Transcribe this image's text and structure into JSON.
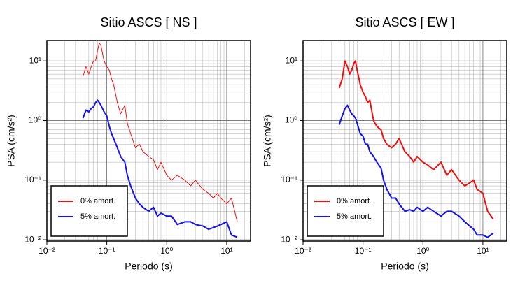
{
  "chart_data": [
    {
      "type": "line",
      "title": "Sitio ASCS [ NS ]",
      "x_label": "Periodo (s)",
      "y_label": "PSA (cm/s²)",
      "log_x": true,
      "log_y": true,
      "grid": true,
      "minor_grid": true,
      "legend": "lower left",
      "x": [
        0.04,
        0.045,
        0.05,
        0.055,
        0.06,
        0.065,
        0.07,
        0.075,
        0.08,
        0.09,
        0.1,
        0.11,
        0.12,
        0.13,
        0.15,
        0.17,
        0.2,
        0.22,
        0.25,
        0.3,
        0.35,
        0.4,
        0.5,
        0.6,
        0.7,
        0.8,
        1,
        1.2,
        1.5,
        2,
        2.5,
        3,
        4,
        5,
        6,
        7,
        8,
        10,
        12,
        15
      ],
      "series": [
        {
          "name": "0% amort.",
          "color": "#ee1111",
          "width": 1,
          "values": [
            5.5,
            8,
            6,
            8,
            10,
            10,
            15,
            20,
            18,
            10,
            8,
            7,
            5,
            4,
            2,
            1.3,
            1.8,
            0.9,
            0.6,
            0.35,
            0.4,
            0.3,
            0.25,
            0.22,
            0.15,
            0.2,
            0.12,
            0.1,
            0.12,
            0.1,
            0.08,
            0.1,
            0.07,
            0.06,
            0.05,
            0.06,
            0.05,
            0.04,
            0.05,
            0.02
          ]
        },
        {
          "name": "5% amort.",
          "color": "#1111ee",
          "width": 2,
          "values": [
            1.1,
            1.5,
            1.4,
            1.6,
            1.7,
            2,
            2.2,
            2,
            1.8,
            1.4,
            1.2,
            0.8,
            0.6,
            0.5,
            0.35,
            0.25,
            0.2,
            0.12,
            0.08,
            0.05,
            0.04,
            0.035,
            0.03,
            0.035,
            0.025,
            0.028,
            0.025,
            0.025,
            0.018,
            0.02,
            0.02,
            0.018,
            0.017,
            0.015,
            0.016,
            0.017,
            0.018,
            0.02,
            0.012,
            0.011
          ]
        }
      ],
      "xlim": [
        0.01,
        25
      ],
      "ylim": [
        0.0095,
        22
      ],
      "xticks": [
        {
          "value": 0.01,
          "label": "10⁻²"
        },
        {
          "value": 0.1,
          "label": "10⁻¹"
        },
        {
          "value": 1,
          "label": "10⁰"
        },
        {
          "value": 10,
          "label": "10¹"
        }
      ],
      "yticks": [
        {
          "value": 0.01,
          "label": "10⁻²"
        },
        {
          "value": 0.1,
          "label": "10⁻¹"
        },
        {
          "value": 1,
          "label": "10⁰"
        },
        {
          "value": 10,
          "label": "10¹"
        }
      ]
    },
    {
      "type": "line",
      "title": "Sitio ASCS [ EW ]",
      "x_label": "Periodo (s)",
      "y_label": "PSA (cm/s²)",
      "log_x": true,
      "log_y": true,
      "grid": true,
      "minor_grid": true,
      "legend": "lower left",
      "x": [
        0.04,
        0.045,
        0.05,
        0.055,
        0.06,
        0.065,
        0.07,
        0.075,
        0.08,
        0.09,
        0.1,
        0.11,
        0.12,
        0.13,
        0.15,
        0.17,
        0.2,
        0.22,
        0.25,
        0.3,
        0.35,
        0.4,
        0.5,
        0.6,
        0.7,
        0.8,
        1,
        1.2,
        1.5,
        2,
        2.5,
        3,
        4,
        5,
        6,
        7,
        8,
        10,
        12,
        15
      ],
      "series": [
        {
          "name": "0% amort.",
          "color": "#ee1111",
          "width": 2,
          "values": [
            3.5,
            5,
            10,
            8,
            6,
            7,
            9,
            10,
            7,
            4,
            3,
            2.5,
            2,
            2.2,
            1,
            0.8,
            0.7,
            0.5,
            0.4,
            0.35,
            0.4,
            0.5,
            0.3,
            0.25,
            0.2,
            0.25,
            0.2,
            0.18,
            0.15,
            0.2,
            0.12,
            0.15,
            0.1,
            0.08,
            0.09,
            0.1,
            0.07,
            0.06,
            0.03,
            0.022
          ]
        },
        {
          "name": "5% amort.",
          "color": "#1111ee",
          "width": 2,
          "values": [
            0.85,
            1.2,
            1.6,
            1.8,
            1.5,
            1.3,
            1.2,
            1.1,
            0.9,
            0.6,
            0.55,
            0.4,
            0.4,
            0.3,
            0.25,
            0.2,
            0.16,
            0.1,
            0.07,
            0.05,
            0.05,
            0.04,
            0.03,
            0.032,
            0.03,
            0.035,
            0.03,
            0.035,
            0.03,
            0.025,
            0.03,
            0.03,
            0.025,
            0.02,
            0.017,
            0.015,
            0.012,
            0.012,
            0.011,
            0.013
          ]
        }
      ],
      "xlim": [
        0.01,
        25
      ],
      "ylim": [
        0.0095,
        22
      ],
      "xticks": [
        {
          "value": 0.01,
          "label": "10⁻²"
        },
        {
          "value": 0.1,
          "label": "10⁻¹"
        },
        {
          "value": 1,
          "label": "10⁰"
        },
        {
          "value": 10,
          "label": "10¹"
        }
      ],
      "yticks": [
        {
          "value": 0.01,
          "label": "10⁻²"
        },
        {
          "value": 0.1,
          "label": "10⁻¹"
        },
        {
          "value": 1,
          "label": "10⁰"
        },
        {
          "value": 10,
          "label": "10¹"
        }
      ]
    }
  ]
}
